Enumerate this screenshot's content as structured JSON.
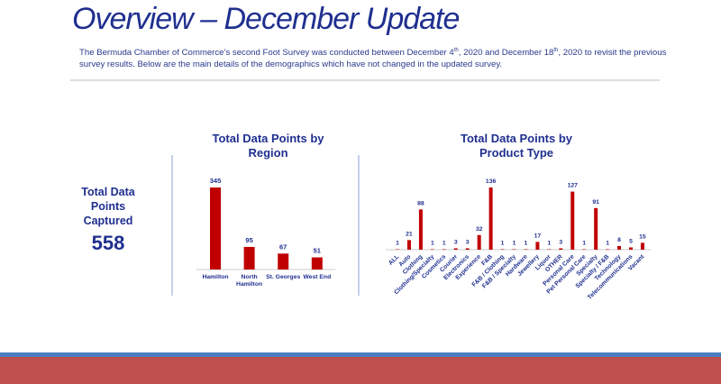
{
  "title": "Overview – December Update",
  "intro": [
    "The Bermuda Chamber of Commerce’s second Foot Survey was conducted between December 4",
    "th",
    ", 2020 and December 18",
    "th",
    ", 2020 to revisit the previous survey results. Below are the main details of the demographics which have not changed in the updated survey."
  ],
  "kpi": {
    "label": "Total Data Points Captured",
    "value": 558
  },
  "chart_data": [
    {
      "type": "bar",
      "title": "Total Data Points by Region",
      "categories": [
        "Hamilton",
        "North Hamilton",
        "St. Georges",
        "West End"
      ],
      "values": [
        345,
        95,
        67,
        51
      ],
      "color": "#c00000"
    },
    {
      "type": "bar",
      "title": "Total Data Points by Product Type",
      "categories": [
        "ALL",
        "Auto",
        "Clothing",
        "Clothing/Specialty",
        "Cosmetics",
        "Courier",
        "Electronics",
        "Experience",
        "F&B",
        "F&B / Clothing",
        "F&B / Specialty",
        "Hardware",
        "Jewellery",
        "Liquor",
        "OTHER",
        "Personal Care",
        "Pet Personal Care",
        "Specialty",
        "Specialty / F&B",
        "Technology",
        "Telecommunications",
        "Vacant"
      ],
      "values": [
        1,
        21,
        88,
        1,
        1,
        3,
        3,
        32,
        136,
        1,
        1,
        1,
        17,
        1,
        3,
        127,
        1,
        91,
        1,
        8,
        5,
        15
      ],
      "color": "#c00000"
    }
  ]
}
